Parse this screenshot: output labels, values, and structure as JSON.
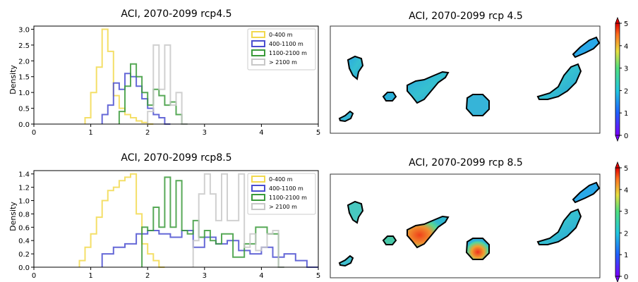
{
  "chart_data": [
    {
      "type": "histogram",
      "title": "ACI, 2070-2099 rcp4.5",
      "xlabel": "",
      "ylabel": "Density",
      "xlim": [
        0,
        5
      ],
      "ylim": [
        0,
        3.1
      ],
      "xticks": [
        "0",
        "1",
        "2",
        "3",
        "4",
        "5"
      ],
      "yticks": [
        "0.0",
        "0.5",
        "1.0",
        "1.5",
        "2.0",
        "2.5",
        "3.0"
      ],
      "legend_position": "top-right",
      "series": [
        {
          "name": "0-400 m",
          "color": "#f2d94e",
          "x": [
            0.9,
            1.0,
            1.1,
            1.2,
            1.3,
            1.4,
            1.5,
            1.6,
            1.7,
            1.8,
            1.9,
            2.0
          ],
          "values": [
            0.2,
            1.0,
            1.8,
            3.0,
            2.3,
            0.9,
            0.5,
            0.3,
            0.2,
            0.1,
            0.05,
            0.0
          ]
        },
        {
          "name": "400-1100 m",
          "color": "#4a4ed0",
          "x": [
            1.2,
            1.3,
            1.4,
            1.5,
            1.6,
            1.7,
            1.8,
            1.9,
            2.0,
            2.1,
            2.2,
            2.3
          ],
          "values": [
            0.3,
            0.6,
            1.3,
            1.1,
            1.6,
            1.5,
            1.2,
            0.8,
            0.5,
            0.3,
            0.2,
            0.0
          ]
        },
        {
          "name": "1100-2100 m",
          "color": "#3a9a3a",
          "x": [
            1.5,
            1.6,
            1.7,
            1.8,
            1.9,
            2.0,
            2.1,
            2.2,
            2.3,
            2.4,
            2.5,
            2.6
          ],
          "values": [
            0.4,
            1.2,
            1.9,
            1.5,
            1.0,
            0.6,
            1.1,
            0.9,
            0.6,
            0.7,
            0.3,
            0.0
          ]
        },
        {
          "name": "> 2100 m",
          "color": "#c8c8c8",
          "x": [
            2.0,
            2.1,
            2.2,
            2.3,
            2.4,
            2.5,
            2.6
          ],
          "values": [
            0.4,
            2.5,
            1.1,
            2.5,
            0.6,
            1.0,
            0.0
          ]
        }
      ]
    },
    {
      "type": "histogram",
      "title": "ACI, 2070-2099 rcp8.5",
      "xlabel": "",
      "ylabel": "Density",
      "xlim": [
        0,
        5
      ],
      "ylim": [
        0,
        1.45
      ],
      "xticks": [
        "0",
        "1",
        "2",
        "3",
        "4",
        "5"
      ],
      "yticks": [
        "0.0",
        "0.2",
        "0.4",
        "0.6",
        "0.8",
        "1.0",
        "1.2",
        "1.4"
      ],
      "legend_position": "top-right",
      "series": [
        {
          "name": "0-400 m",
          "color": "#f2d94e",
          "x": [
            0.8,
            0.9,
            1.0,
            1.1,
            1.2,
            1.3,
            1.4,
            1.5,
            1.6,
            1.7,
            1.8,
            1.9,
            2.0,
            2.1,
            2.2
          ],
          "values": [
            0.1,
            0.3,
            0.5,
            0.75,
            1.0,
            1.15,
            1.2,
            1.3,
            1.35,
            1.4,
            0.8,
            0.35,
            0.2,
            0.1,
            0.0
          ]
        },
        {
          "name": "400-1100 m",
          "color": "#4a4ed0",
          "x": [
            1.2,
            1.4,
            1.6,
            1.8,
            2.0,
            2.2,
            2.4,
            2.6,
            2.8,
            3.0,
            3.2,
            3.4,
            3.6,
            3.8,
            4.0,
            4.2,
            4.4,
            4.6,
            4.8
          ],
          "values": [
            0.2,
            0.3,
            0.35,
            0.5,
            0.55,
            0.5,
            0.45,
            0.55,
            0.3,
            0.45,
            0.35,
            0.4,
            0.25,
            0.2,
            0.3,
            0.15,
            0.2,
            0.1,
            0.0
          ]
        },
        {
          "name": "1100-2100 m",
          "color": "#3a9a3a",
          "x": [
            1.9,
            2.0,
            2.1,
            2.2,
            2.3,
            2.4,
            2.5,
            2.6,
            2.7,
            2.8,
            2.9,
            3.0,
            3.1,
            3.2,
            3.3,
            3.5,
            3.7,
            3.9,
            4.1,
            4.3
          ],
          "values": [
            0.6,
            0.55,
            0.9,
            0.6,
            1.35,
            0.6,
            1.3,
            0.55,
            0.5,
            0.7,
            0.45,
            0.55,
            0.4,
            0.35,
            0.5,
            0.15,
            0.35,
            0.6,
            0.5,
            0.0
          ]
        },
        {
          "name": "> 2100 m",
          "color": "#c8c8c8",
          "x": [
            2.8,
            2.9,
            3.0,
            3.1,
            3.2,
            3.3,
            3.4,
            3.5,
            3.6,
            3.7,
            3.8,
            3.9,
            4.0,
            4.1,
            4.2,
            4.3
          ],
          "values": [
            0.4,
            1.1,
            1.4,
            1.1,
            0.7,
            1.4,
            0.7,
            0.7,
            1.4,
            0.3,
            0.5,
            0.25,
            0.3,
            0.5,
            0.55,
            0.0
          ]
        }
      ]
    },
    {
      "type": "map",
      "title": "ACI, 2070-2099 rcp 4.5",
      "colorbar": {
        "min": 0,
        "max": 5,
        "ticks": [
          "0",
          "1",
          "2",
          "3",
          "4",
          "5"
        ],
        "colormap": "jet",
        "extend": "both"
      }
    },
    {
      "type": "map",
      "title": "ACI, 2070-2099 rcp 8.5",
      "colorbar": {
        "min": 0,
        "max": 5,
        "ticks": [
          "0",
          "1",
          "2",
          "3",
          "4",
          "5"
        ],
        "colormap": "jet",
        "extend": "both"
      }
    }
  ]
}
